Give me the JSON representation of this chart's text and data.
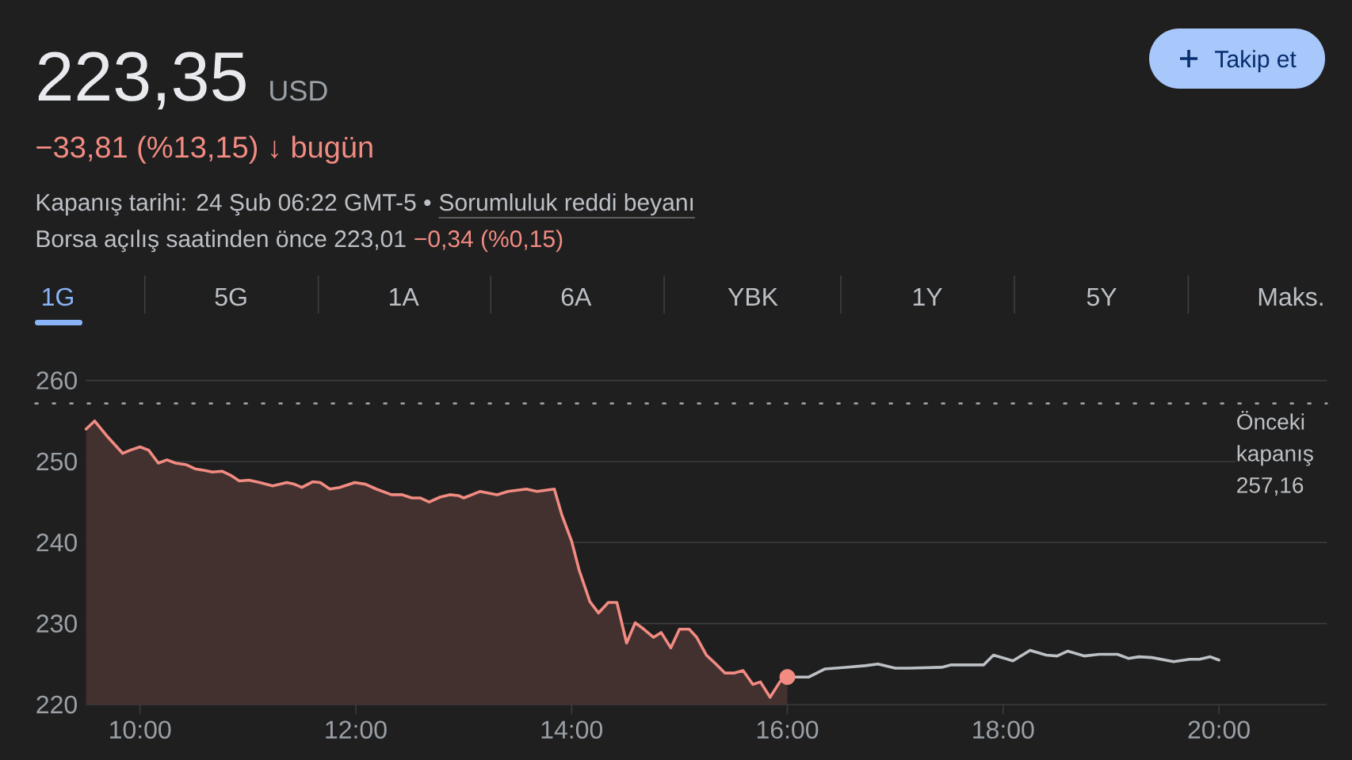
{
  "chart_data": {
    "type": "line",
    "title": "223,35",
    "subtitle": "−33,81 (%13,15) ↓ bugün",
    "annotations": [
      "USD",
      "Kapanış tarihi: 24 Şub 06:22 GMT-5 •",
      "Sorumluluk reddi beyanı",
      "Borsa açılış saatinden önce 223,01",
      "−0,34 (%0,15)",
      "1G",
      "5G",
      "1A",
      "6A",
      "YBK",
      "1Y",
      "5Y",
      "Maks.",
      "Takip et"
    ],
    "xlim": [
      9.5,
      21
    ],
    "ylim": [
      220,
      260
    ],
    "xticks": [
      {
        "value": 10,
        "label": "10:00"
      },
      {
        "value": 12,
        "label": "12:00"
      },
      {
        "value": 14,
        "label": "14:00"
      },
      {
        "value": 16,
        "label": "16:00"
      },
      {
        "value": 18,
        "label": "18:00"
      },
      {
        "value": 20,
        "label": "20:00"
      }
    ],
    "yticks": [
      220,
      230,
      240,
      250,
      260
    ],
    "grid": "y",
    "ref_lines": [
      {
        "axis": "y",
        "value": 257.16,
        "label": "Önceki kapanış 257,16",
        "color": "#9aa0a6",
        "line_style": "dotted"
      }
    ],
    "series": [
      {
        "type": "area",
        "color": "#f28b82",
        "x": [
          9.5,
          9.58,
          9.69,
          9.84,
          9.91,
          10.0,
          10.08,
          10.17,
          10.25,
          10.33,
          10.43,
          10.51,
          10.6,
          10.67,
          10.76,
          10.84,
          10.92,
          11.01,
          11.11,
          11.23,
          11.36,
          11.43,
          11.5,
          11.6,
          11.67,
          11.76,
          11.85,
          11.99,
          12.09,
          12.19,
          12.33,
          12.43,
          12.52,
          12.6,
          12.68,
          12.78,
          12.87,
          12.95,
          13.0,
          13.15,
          13.31,
          13.41,
          13.58,
          13.68,
          13.84,
          13.91,
          14.0,
          14.07,
          14.17,
          14.25,
          14.34,
          14.42,
          14.51,
          14.59,
          14.67,
          14.76,
          14.83,
          14.92,
          15.0,
          15.09,
          15.16,
          15.25,
          15.33,
          15.42,
          15.51,
          15.59,
          15.68,
          15.75,
          15.84,
          15.93,
          16.0
        ],
        "values": [
          254.0,
          255.0,
          253.2,
          251.0,
          251.4,
          251.8,
          251.4,
          249.8,
          250.2,
          249.8,
          249.6,
          249.1,
          248.9,
          248.7,
          248.8,
          248.3,
          247.6,
          247.7,
          247.4,
          247.0,
          247.4,
          247.2,
          246.8,
          247.5,
          247.4,
          246.6,
          246.8,
          247.4,
          247.2,
          246.6,
          245.9,
          245.9,
          245.5,
          245.5,
          245.0,
          245.6,
          245.9,
          245.8,
          245.5,
          246.3,
          245.9,
          246.3,
          246.6,
          246.3,
          246.6,
          243.4,
          240.2,
          236.6,
          232.7,
          231.3,
          232.6,
          232.6,
          227.6,
          230.1,
          229.3,
          228.3,
          228.9,
          227.0,
          229.3,
          229.3,
          228.3,
          226.1,
          225.1,
          223.9,
          223.9,
          224.2,
          222.5,
          222.8,
          220.9,
          222.8,
          223.4
        ]
      },
      {
        "color": "#bdc1c6",
        "x": [
          16.0,
          16.09,
          16.2,
          16.35,
          16.54,
          16.72,
          16.84,
          17.0,
          17.13,
          17.43,
          17.52,
          17.82,
          17.91,
          18.09,
          18.25,
          18.4,
          18.5,
          18.6,
          18.75,
          18.89,
          19.06,
          19.16,
          19.26,
          19.38,
          19.58,
          19.73,
          19.82,
          19.92,
          20.0
        ],
        "values": [
          223.4,
          223.4,
          223.4,
          224.4,
          224.6,
          224.8,
          225.0,
          224.5,
          224.5,
          224.6,
          224.9,
          224.9,
          226.1,
          225.4,
          226.7,
          226.1,
          226.0,
          226.6,
          226.0,
          226.2,
          226.2,
          225.7,
          225.9,
          225.8,
          225.3,
          225.6,
          225.6,
          225.9,
          225.5
        ]
      },
      {
        "type": "scatter",
        "color": "#f28b82",
        "marker": "circle",
        "x": [
          16
        ],
        "values": [
          223.4
        ]
      }
    ]
  }
}
